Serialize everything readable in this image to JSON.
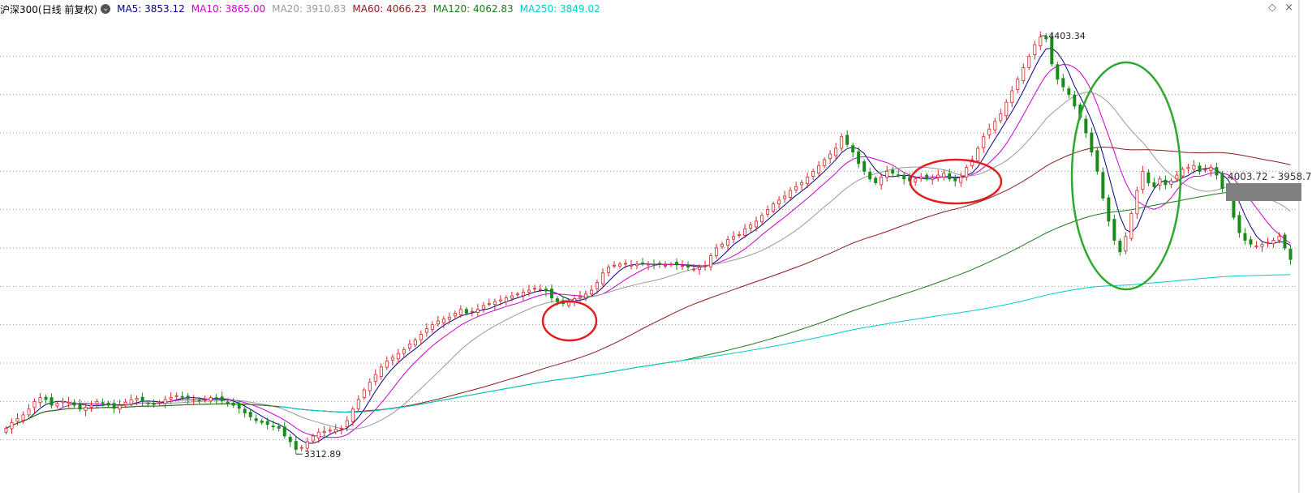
{
  "legend": {
    "title": "沪深300(日线 前复权)",
    "toggle_glyph": "⌄",
    "items": [
      {
        "label": "MA5: 3853.12",
        "color": "#000080"
      },
      {
        "label": "MA10: 3865.00",
        "color": "#cc00cc"
      },
      {
        "label": "MA20: 3910.83",
        "color": "#999999"
      },
      {
        "label": "MA60: 4066.23",
        "color": "#8b1a1a"
      },
      {
        "label": "MA120: 4062.83",
        "color": "#1a7a1a"
      },
      {
        "label": "MA250: 3849.02",
        "color": "#00cccc"
      }
    ]
  },
  "corner_icons": {
    "diamond": "◇",
    "close": "×"
  },
  "annotations": {
    "high_label": "4403.34",
    "low_label": "3312.89",
    "range_label": "4003.72 - 3958.7"
  },
  "colors": {
    "up": "#d62728",
    "down": "#1a8a1a",
    "grid": "#9a9a9a",
    "circle_red": "#e02020",
    "circle_green": "#2ea82e"
  },
  "chart_data": {
    "type": "candlestick",
    "title": "沪深300(日线 前复权)",
    "high": 4403.34,
    "low": 3312.89,
    "ylim": [
      3250,
      4450
    ],
    "series_ma": [
      {
        "name": "MA5",
        "last": 3853.12
      },
      {
        "name": "MA10",
        "last": 3865.0
      },
      {
        "name": "MA20",
        "last": 3910.83
      },
      {
        "name": "MA60",
        "last": 4066.23
      },
      {
        "name": "MA120",
        "last": 4062.83
      },
      {
        "name": "MA250",
        "last": 3849.02
      }
    ],
    "closes": [
      3380,
      3395,
      3405,
      3415,
      3430,
      3450,
      3460,
      3455,
      3440,
      3445,
      3450,
      3448,
      3440,
      3430,
      3435,
      3440,
      3450,
      3445,
      3440,
      3432,
      3440,
      3448,
      3455,
      3458,
      3450,
      3445,
      3442,
      3448,
      3455,
      3460,
      3465,
      3462,
      3458,
      3455,
      3452,
      3455,
      3460,
      3458,
      3452,
      3445,
      3440,
      3432,
      3420,
      3410,
      3400,
      3395,
      3390,
      3385,
      3380,
      3360,
      3345,
      3325,
      3330,
      3345,
      3360,
      3370,
      3372,
      3375,
      3378,
      3380,
      3400,
      3430,
      3455,
      3480,
      3500,
      3520,
      3540,
      3555,
      3565,
      3575,
      3585,
      3600,
      3610,
      3625,
      3640,
      3650,
      3660,
      3665,
      3670,
      3680,
      3690,
      3680,
      3685,
      3690,
      3700,
      3705,
      3710,
      3715,
      3720,
      3725,
      3730,
      3735,
      3740,
      3745,
      3742,
      3738,
      3720,
      3710,
      3705,
      3712,
      3718,
      3724,
      3730,
      3740,
      3760,
      3785,
      3800,
      3805,
      3808,
      3810,
      3805,
      3808,
      3810,
      3808,
      3806,
      3808,
      3805,
      3808,
      3806,
      3804,
      3800,
      3795,
      3800,
      3805,
      3830,
      3850,
      3860,
      3872,
      3880,
      3885,
      3900,
      3910,
      3920,
      3935,
      3950,
      3965,
      3975,
      3985,
      4000,
      4010,
      4020,
      4035,
      4050,
      4065,
      4080,
      4095,
      4110,
      4140,
      4120,
      4100,
      4070,
      4050,
      4030,
      4020,
      4035,
      4050,
      4045,
      4040,
      4030,
      4025,
      4030,
      4035,
      4030,
      4032,
      4040,
      4045,
      4030,
      4025,
      4035,
      4060,
      4080,
      4110,
      4140,
      4160,
      4180,
      4200,
      4230,
      4260,
      4290,
      4320,
      4350,
      4380,
      4400,
      4395,
      4330,
      4290,
      4270,
      4250,
      4220,
      4190,
      4150,
      4100,
      4050,
      3980,
      3920,
      3870,
      3840,
      3880,
      3940,
      4000,
      4050,
      4020,
      4010,
      4030,
      4015,
      4025,
      4040,
      4055,
      4060,
      4065,
      4050,
      4055,
      4060,
      4040,
      4005,
      3980,
      3930,
      3890,
      3870,
      3860,
      3855,
      3860,
      3865,
      3870,
      3880,
      3850,
      3820
    ]
  }
}
